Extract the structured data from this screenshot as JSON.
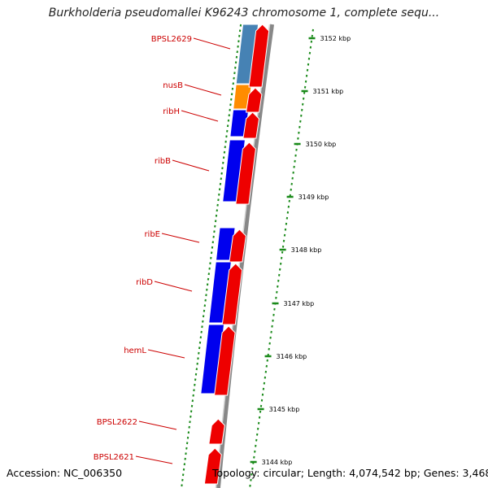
{
  "title": "Burkholderia pseudomallei K96243 chromosome 1, complete sequ...",
  "footer": {
    "accession": "Accession: NC_006350",
    "topology": "Topology: circular; Length: 4,074,542 bp; Genes: 3,468"
  },
  "colors": {
    "reverse_strand": "#0000ee",
    "forward_cds": "#ee0000",
    "nusB": "#ff8c00",
    "BPSL2629": "#4682b4",
    "label": "#cc0000",
    "tick": "#1a8a1a",
    "backbone": "#888888"
  },
  "kbp_ticks": [
    "3152 kbp",
    "3151 kbp",
    "3150 kbp",
    "3149 kbp",
    "3148 kbp",
    "3147 kbp",
    "3146 kbp",
    "3145 kbp",
    "3144 kbp"
  ],
  "genes": [
    {
      "name": "BPSL2629",
      "strand": "reverse",
      "color": "#4682b4"
    },
    {
      "name": "nusB",
      "strand": "reverse",
      "color": "#ff8c00"
    },
    {
      "name": "ribH",
      "strand": "reverse",
      "color": "#0000ee"
    },
    {
      "name": "ribB",
      "strand": "reverse",
      "color": "#0000ee"
    },
    {
      "name": "ribE",
      "strand": "reverse",
      "color": "#0000ee"
    },
    {
      "name": "ribD",
      "strand": "reverse",
      "color": "#0000ee"
    },
    {
      "name": "hemL",
      "strand": "reverse",
      "color": "#0000ee"
    },
    {
      "name": "BPSL2622",
      "strand": "forward",
      "color": "#ee0000"
    },
    {
      "name": "BPSL2621",
      "strand": "forward",
      "color": "#ee0000"
    }
  ]
}
